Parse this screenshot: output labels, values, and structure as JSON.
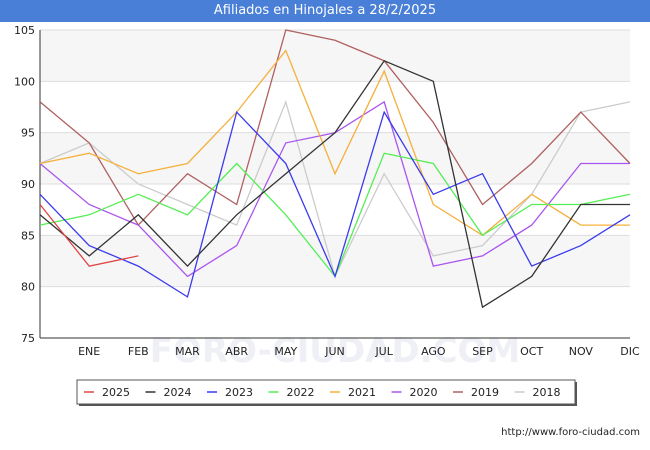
{
  "chart_data": {
    "type": "line",
    "title": "Afiliados en Hinojales a 28/2/2025",
    "x_tick_labels": [
      "ENE",
      "FEB",
      "MAR",
      "ABR",
      "MAY",
      "JUN",
      "JUL",
      "AGO",
      "SEP",
      "OCT",
      "NOV",
      "DIC"
    ],
    "xlim": [
      0,
      12
    ],
    "ylim": [
      75,
      105
    ],
    "y_ticks": [
      75,
      80,
      85,
      90,
      95,
      100,
      105
    ],
    "grid": "horizontal",
    "legend_position": "bottom",
    "watermark": "FORO-CIUDAD.COM",
    "source_url": "http://www.foro-ciudad.com",
    "series": [
      {
        "name": "2018",
        "color": "#cccccc",
        "x": [
          0,
          1,
          2,
          3,
          4,
          5,
          6,
          7,
          8,
          9,
          10,
          11,
          12
        ],
        "values": [
          92,
          94,
          90,
          88,
          86,
          98,
          81,
          91,
          83,
          84,
          89,
          97,
          98
        ]
      },
      {
        "name": "2019",
        "color": "#b06060",
        "x": [
          0,
          1,
          2,
          3,
          4,
          5,
          6,
          7,
          8,
          9,
          10,
          11,
          12
        ],
        "values": [
          98,
          94,
          86,
          91,
          88,
          105,
          104,
          102,
          96,
          88,
          92,
          97,
          92
        ]
      },
      {
        "name": "2020",
        "color": "#aa55ee",
        "x": [
          0,
          1,
          2,
          3,
          4,
          5,
          6,
          7,
          8,
          9,
          10,
          11,
          12
        ],
        "values": [
          92,
          88,
          86,
          81,
          84,
          94,
          95,
          98,
          82,
          83,
          86,
          92,
          92
        ]
      },
      {
        "name": "2021",
        "color": "#f5b03c",
        "x": [
          0,
          1,
          2,
          3,
          4,
          5,
          6,
          7,
          8,
          9,
          10,
          11,
          12
        ],
        "values": [
          92,
          93,
          91,
          92,
          97,
          103,
          91,
          101,
          88,
          85,
          89,
          86,
          86
        ]
      },
      {
        "name": "2022",
        "color": "#55ee55",
        "x": [
          0,
          1,
          2,
          3,
          4,
          5,
          6,
          7,
          8,
          9,
          10,
          11,
          12
        ],
        "values": [
          86,
          87,
          89,
          87,
          92,
          87,
          81,
          93,
          92,
          85,
          88,
          88,
          89
        ]
      },
      {
        "name": "2023",
        "color": "#3b3bee",
        "x": [
          0,
          1,
          2,
          3,
          4,
          5,
          6,
          7,
          8,
          9,
          10,
          11,
          12
        ],
        "values": [
          89,
          84,
          82,
          79,
          97,
          92,
          81,
          97,
          89,
          91,
          82,
          84,
          87
        ]
      },
      {
        "name": "2024",
        "color": "#333333",
        "x": [
          0,
          1,
          2,
          3,
          4,
          5,
          6,
          7,
          8,
          9,
          10,
          11,
          12
        ],
        "values": [
          87,
          83,
          87,
          82,
          87,
          91,
          95,
          102,
          100,
          78,
          81,
          88,
          88
        ]
      },
      {
        "name": "2025",
        "color": "#e04444",
        "x": [
          0,
          1,
          2
        ],
        "values": [
          88,
          82,
          83
        ]
      }
    ],
    "legend_order": [
      "2025",
      "2024",
      "2023",
      "2022",
      "2021",
      "2020",
      "2019",
      "2018"
    ]
  }
}
